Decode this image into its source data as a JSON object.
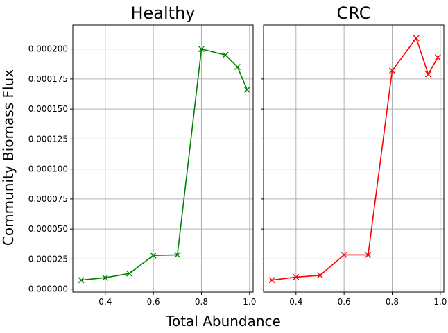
{
  "chart_data": [
    {
      "type": "line",
      "title": "Healthy",
      "xlabel": "Total Abundance",
      "ylabel": "Community Biomass Flux",
      "color": "#008000",
      "marker": "x",
      "x": [
        0.3,
        0.4,
        0.5,
        0.6,
        0.7,
        0.8,
        0.9,
        0.95,
        0.99
      ],
      "y": [
        7.5e-06,
        9.5e-06,
        1.3e-05,
        2.8e-05,
        2.85e-05,
        0.0002,
        0.000195,
        0.000185,
        0.000166
      ],
      "xlim": [
        0.265,
        1.015
      ],
      "ylim": [
        -2.5e-06,
        0.00022
      ],
      "grid": true,
      "xticks": [
        0.4,
        0.6,
        0.8,
        1.0
      ],
      "xtick_labels": [
        "0.4",
        "0.6",
        "0.8",
        "1.0"
      ],
      "yticks": [
        0,
        2.5e-05,
        5e-05,
        7.5e-05,
        0.0001,
        0.000125,
        0.00015,
        0.000175,
        0.0002
      ],
      "ytick_labels": [
        "0.000000",
        "0.000025",
        "0.000050",
        "0.000075",
        "0.000100",
        "0.000125",
        "0.000150",
        "0.000175",
        "0.000200"
      ]
    },
    {
      "type": "line",
      "title": "CRC",
      "color": "#ff0000",
      "marker": "x",
      "x": [
        0.3,
        0.4,
        0.5,
        0.6,
        0.7,
        0.8,
        0.9,
        0.95,
        0.99
      ],
      "y": [
        7.5e-06,
        1e-05,
        1.15e-05,
        2.85e-05,
        2.85e-05,
        0.000182,
        0.000209,
        0.000179,
        0.000193
      ],
      "xlim": [
        0.265,
        1.015
      ],
      "ylim": [
        -2.5e-06,
        0.00022
      ],
      "grid": true,
      "xticks": [
        0.4,
        0.6,
        0.8,
        1.0
      ],
      "xtick_labels": [
        "0.4",
        "0.6",
        "0.8",
        "1.0"
      ],
      "yticks": [
        0,
        2.5e-05,
        5e-05,
        7.5e-05,
        0.0001,
        0.000125,
        0.00015,
        0.000175,
        0.0002
      ]
    }
  ]
}
